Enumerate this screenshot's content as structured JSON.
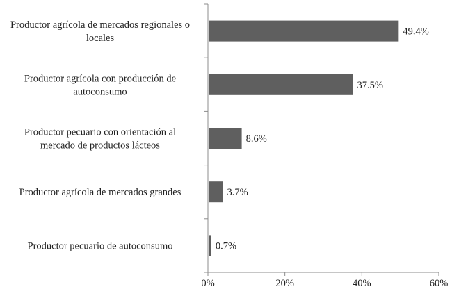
{
  "chart_data": {
    "type": "bar",
    "orientation": "horizontal",
    "title": "",
    "xlabel": "",
    "ylabel": "",
    "categories": [
      [
        "Productor agrícola de mercados regionales o",
        "locales"
      ],
      [
        "Productor agrícola con producción de",
        "autoconsumo"
      ],
      [
        "Productor pecuario con orientación al",
        "mercado de productos lácteos"
      ],
      [
        "Productor agrícola de mercados grandes"
      ],
      [
        "Productor pecuario de autoconsumo"
      ]
    ],
    "values": [
      49.4,
      37.5,
      8.6,
      3.7,
      0.7
    ],
    "value_labels": [
      "49.4%",
      "37.5%",
      "8.6%",
      "3.7%",
      "0.7%"
    ],
    "xlim": [
      0,
      60
    ],
    "x_ticks": [
      0,
      20,
      40,
      60
    ],
    "x_tick_labels": [
      "0%",
      "20%",
      "40%",
      "60%"
    ],
    "grid": false,
    "legend": "none",
    "bar_color": "#5f5f5f",
    "axis_color": "#8c8c8c"
  }
}
